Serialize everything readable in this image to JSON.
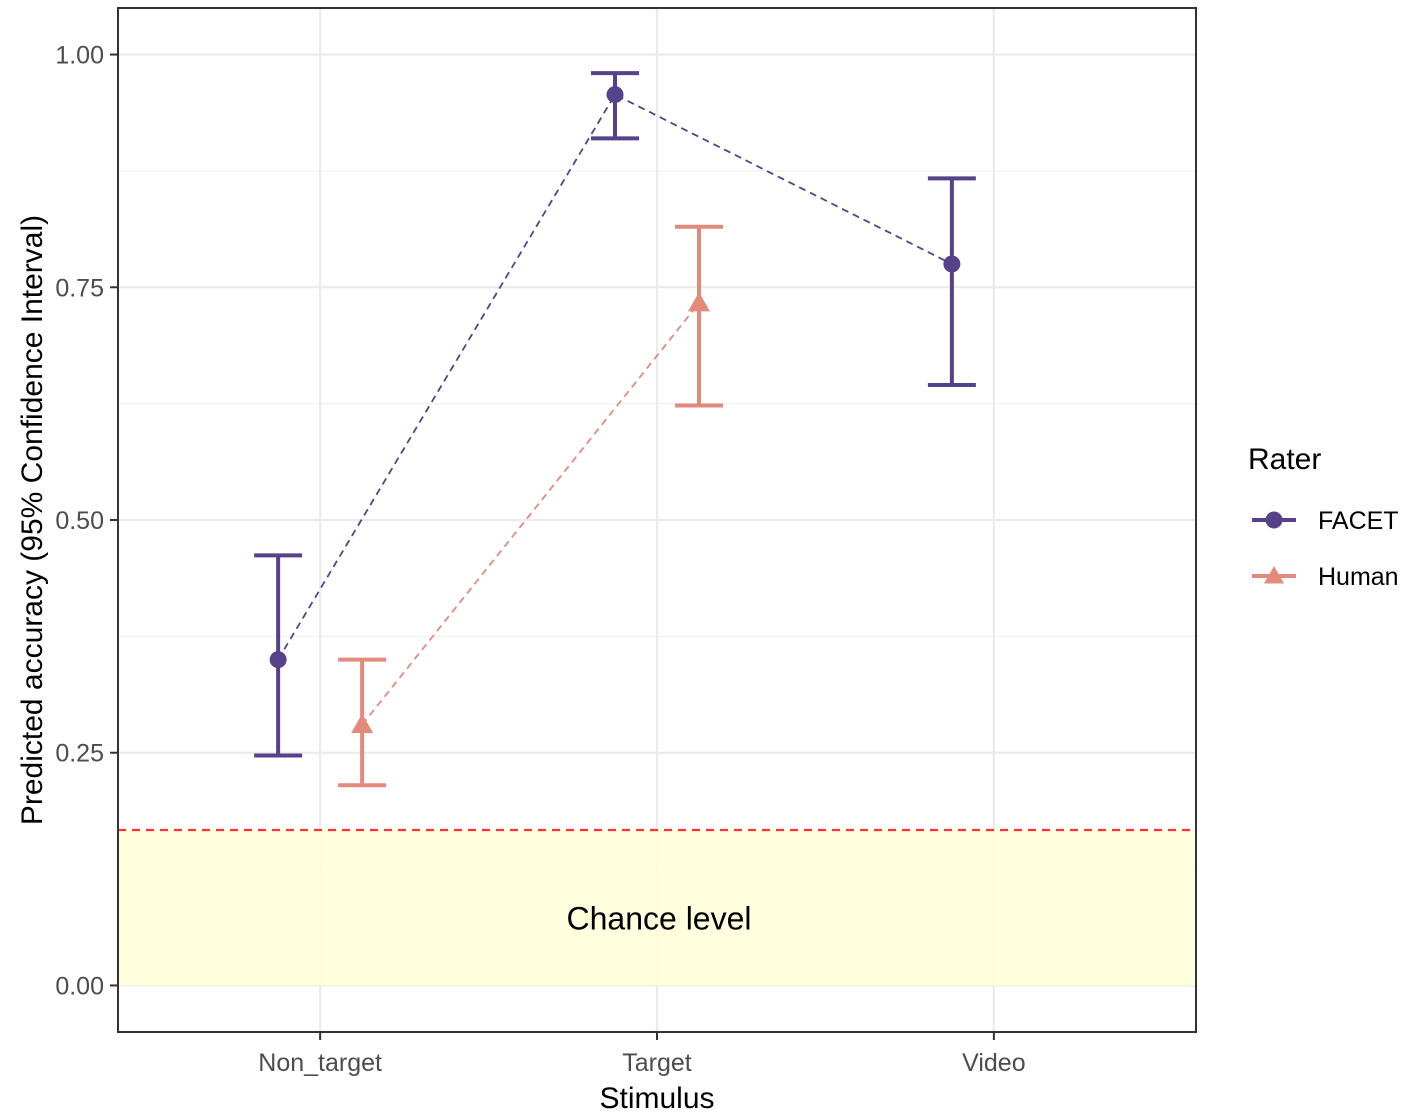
{
  "chart_data": {
    "type": "scatter",
    "categories": [
      "Non_target",
      "Target",
      "Video"
    ],
    "xlabel": "Stimulus",
    "ylabel": "Predicted accuracy (95% Confidence Interval)",
    "ylim": [
      -0.05,
      1.05
    ],
    "yticks": [
      0.0,
      0.25,
      0.5,
      0.75,
      1.0
    ],
    "ytick_labels": [
      "0.00",
      "0.25",
      "0.50",
      "0.75",
      "1.00"
    ],
    "grid": true,
    "legend": {
      "title": "Rater",
      "position": "right"
    },
    "series": [
      {
        "name": "FACET",
        "color": "#56428a",
        "marker": "circle",
        "line": "dashed",
        "points": [
          {
            "category": "Non_target",
            "y": 0.35,
            "lower": 0.247,
            "upper": 0.462
          },
          {
            "category": "Target",
            "y": 0.957,
            "lower": 0.91,
            "upper": 0.98
          },
          {
            "category": "Video",
            "y": 0.775,
            "lower": 0.645,
            "upper": 0.867
          }
        ]
      },
      {
        "name": "Human",
        "color": "#e38a7d",
        "marker": "triangle",
        "line": "dashed",
        "points": [
          {
            "category": "Non_target",
            "y": 0.28,
            "lower": 0.215,
            "upper": 0.35
          },
          {
            "category": "Target",
            "y": 0.733,
            "lower": 0.623,
            "upper": 0.815
          }
        ]
      }
    ],
    "chance_band": {
      "ymin": 0.0,
      "ymax": 0.167,
      "fill": "#ffffd9",
      "line_color": "#ff3333",
      "label": "Chance level"
    }
  }
}
